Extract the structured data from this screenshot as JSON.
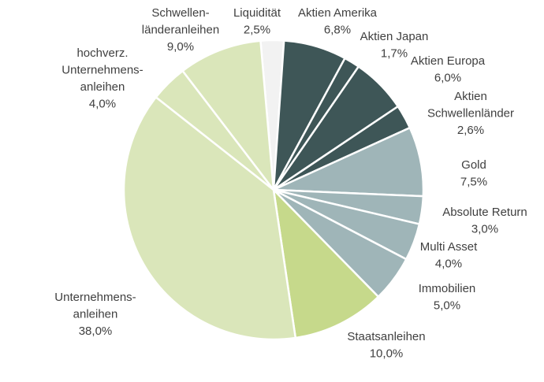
{
  "chart_data": {
    "type": "pie",
    "categories": [
      "Liquidität",
      "Aktien Amerika",
      "Aktien Japan",
      "Aktien Europa",
      "Aktien\nSchwellenländer",
      "Gold",
      "Absolute Return",
      "Multi Asset",
      "Immobilien",
      "Staatsanleihen",
      "Unternehmens-\nanleihen",
      "hochverz.\nUnternehmens-\nanleihen",
      "Schwellen-\nländeranleihen"
    ],
    "values": [
      2.5,
      6.8,
      1.7,
      6.0,
      2.6,
      7.5,
      3.0,
      4.0,
      5.0,
      10.0,
      38.0,
      4.0,
      9.0
    ],
    "value_labels": [
      "2,5%",
      "6,8%",
      "1,7%",
      "6,0%",
      "2,6%",
      "7,5%",
      "3,0%",
      "4,0%",
      "5,0%",
      "10,0%",
      "38,0%",
      "4,0%",
      "9,0%"
    ],
    "colors": [
      "#f2f2f2",
      "#3e5657",
      "#3e5657",
      "#3e5657",
      "#3e5657",
      "#9fb5b8",
      "#9fb5b8",
      "#9fb5b8",
      "#9fb5b8",
      "#c6d98b",
      "#dae6ba",
      "#dae6ba",
      "#dae6ba"
    ]
  }
}
